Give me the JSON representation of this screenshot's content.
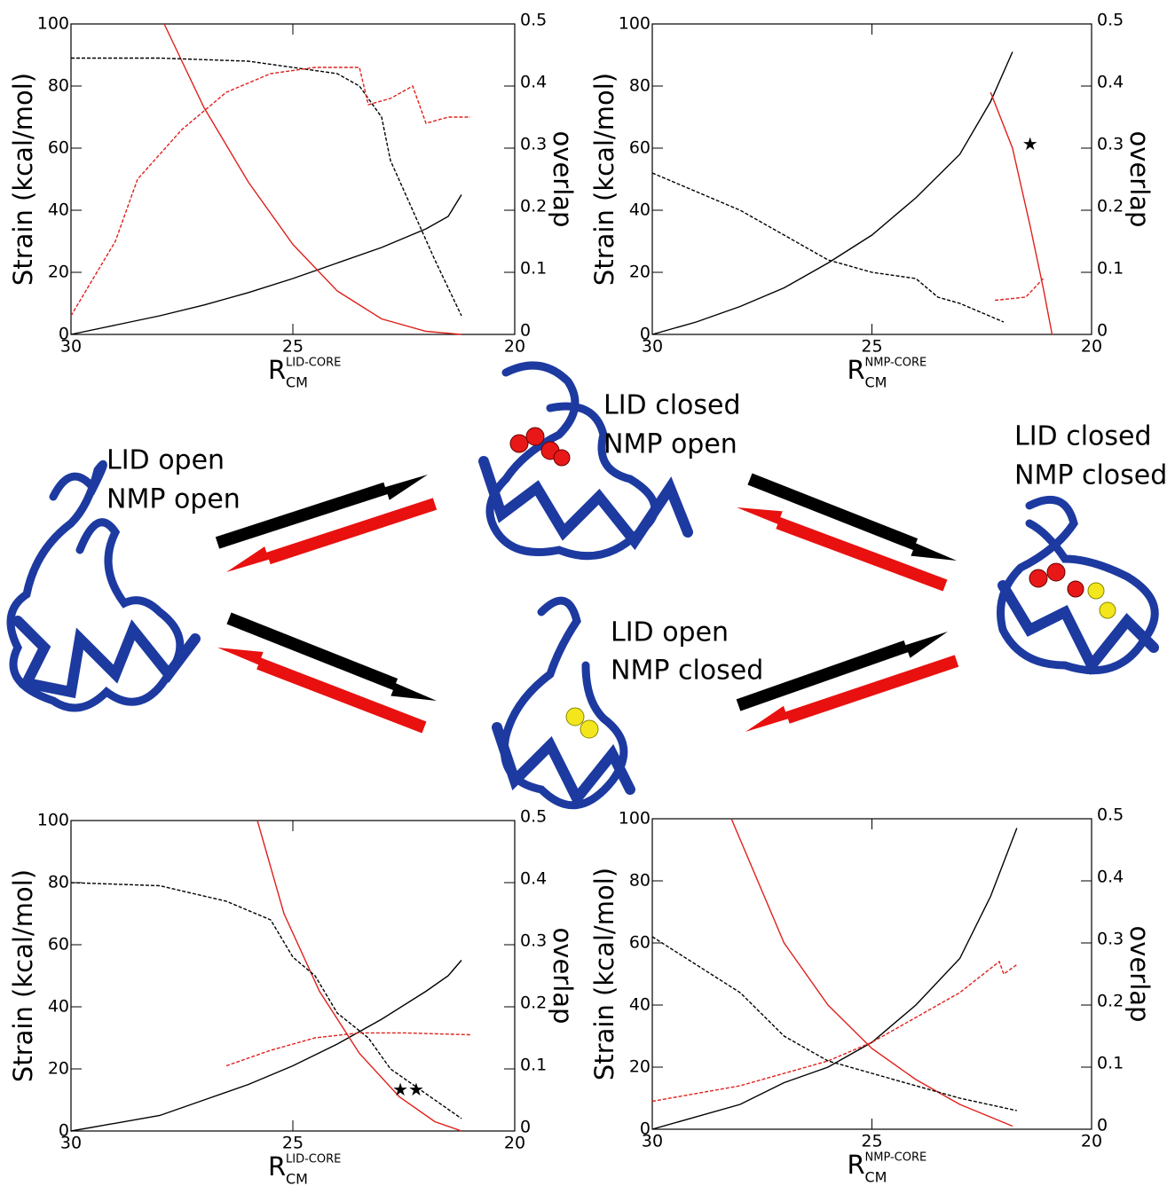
{
  "chart_data": [
    {
      "type": "line",
      "y_label": "Strain (kcal/mol)",
      "y2_label": "overlap",
      "x_label": "R",
      "x_label_sub": "CM",
      "x_label_sup": "LID-CORE",
      "xlim": [
        30,
        20
      ],
      "xticks": [
        30,
        25,
        20
      ],
      "ylim": [
        0,
        100
      ],
      "yticks": [
        0,
        20,
        40,
        60,
        80,
        100
      ],
      "y2lim": [
        0,
        0.5
      ],
      "y2ticks": [
        0,
        0.1,
        0.2,
        0.3,
        0.4,
        0.5
      ],
      "series": [
        {
          "color": "#000000",
          "dash": false,
          "x": [
            30,
            29,
            28,
            27,
            26,
            25,
            24,
            23,
            22,
            21.5,
            21.2
          ],
          "values": [
            0,
            3,
            6,
            9.5,
            13.5,
            18,
            23,
            28,
            34,
            38,
            45
          ]
        },
        {
          "color": "#e0201b",
          "dash": false,
          "x": [
            27.9,
            27,
            26,
            25,
            24,
            23,
            22,
            21.2
          ],
          "values": [
            100,
            73,
            49,
            29,
            14,
            5,
            1,
            0
          ]
        },
        {
          "color": "#000000",
          "dash": true,
          "axis": "y2",
          "x": [
            30,
            28,
            26,
            25,
            24,
            23.5,
            23,
            22.8,
            22.3,
            21.8,
            21.2
          ],
          "values": [
            0.445,
            0.445,
            0.44,
            0.43,
            0.42,
            0.4,
            0.35,
            0.28,
            0.2,
            0.12,
            0.03
          ]
        },
        {
          "color": "#e0201b",
          "dash": true,
          "axis": "y2",
          "x": [
            30,
            29,
            28.5,
            27.5,
            26.5,
            25.5,
            24.5,
            23.5,
            23.3,
            22.8,
            22.3,
            22,
            21.5,
            21
          ],
          "values": [
            0.03,
            0.15,
            0.25,
            0.33,
            0.39,
            0.42,
            0.43,
            0.43,
            0.37,
            0.38,
            0.4,
            0.34,
            0.35,
            0.35
          ]
        }
      ]
    },
    {
      "type": "line",
      "y_label": "Strain (kcal/mol)",
      "y2_label": "overlap",
      "x_label": "R",
      "x_label_sub": "CM",
      "x_label_sup": "NMP-CORE",
      "xlim": [
        30,
        20
      ],
      "xticks": [
        30,
        25,
        20
      ],
      "ylim": [
        0,
        100
      ],
      "yticks": [
        0,
        20,
        40,
        60,
        80,
        100
      ],
      "y2lim": [
        0,
        0.5
      ],
      "y2ticks": [
        0,
        0.1,
        0.2,
        0.3,
        0.4,
        0.5
      ],
      "annotations": [
        {
          "text": "★",
          "x": 21.4,
          "y": 61
        }
      ],
      "series": [
        {
          "color": "#000000",
          "dash": false,
          "x": [
            30,
            29,
            28,
            27,
            26,
            25,
            24,
            23,
            22.3,
            21.8
          ],
          "values": [
            0,
            4,
            9,
            15,
            23,
            32,
            44,
            58,
            75,
            91
          ]
        },
        {
          "color": "#e0201b",
          "dash": false,
          "x": [
            22.3,
            21.8,
            21.4,
            21.1,
            20.9
          ],
          "values": [
            78,
            60,
            35,
            15,
            0
          ]
        },
        {
          "color": "#000000",
          "dash": true,
          "axis": "y2",
          "x": [
            30,
            29,
            28,
            27,
            26,
            25,
            24,
            23.5,
            23,
            22
          ],
          "values": [
            0.26,
            0.23,
            0.2,
            0.16,
            0.12,
            0.1,
            0.09,
            0.06,
            0.05,
            0.02
          ]
        },
        {
          "color": "#e0201b",
          "dash": true,
          "axis": "y2",
          "x": [
            22.2,
            21.5,
            21.1
          ],
          "values": [
            0.055,
            0.06,
            0.09
          ]
        }
      ]
    },
    {
      "type": "line",
      "y_label": "Strain (kcal/mol)",
      "y2_label": "overlap",
      "x_label": "R",
      "x_label_sub": "CM",
      "x_label_sup": "LID-CORE",
      "xlim": [
        30,
        20
      ],
      "xticks": [
        30,
        25,
        20
      ],
      "ylim": [
        0,
        100
      ],
      "yticks": [
        0,
        20,
        40,
        60,
        80,
        100
      ],
      "y2lim": [
        0,
        0.5
      ],
      "y2ticks": [
        0,
        0.1,
        0.2,
        0.3,
        0.4,
        0.5
      ],
      "annotations": [
        {
          "text": "★★",
          "x": 22.4,
          "y": 13
        }
      ],
      "series": [
        {
          "color": "#000000",
          "dash": false,
          "x": [
            30,
            28,
            27,
            26,
            25,
            24,
            23,
            22,
            21.5,
            21.2
          ],
          "values": [
            0,
            5,
            10,
            15,
            21,
            28,
            36,
            45,
            50,
            55
          ]
        },
        {
          "color": "#e0201b",
          "dash": false,
          "x": [
            25.8,
            25.2,
            24.4,
            23.5,
            22.6,
            21.8,
            21.2
          ],
          "values": [
            100,
            70,
            45,
            25,
            11,
            3,
            0
          ]
        },
        {
          "color": "#000000",
          "dash": true,
          "axis": "y2",
          "x": [
            30,
            28,
            26.5,
            25.5,
            25,
            24.5,
            24,
            23.3,
            22.8,
            22,
            21.2
          ],
          "values": [
            0.4,
            0.395,
            0.37,
            0.34,
            0.28,
            0.25,
            0.19,
            0.15,
            0.1,
            0.06,
            0.02
          ]
        },
        {
          "color": "#e0201b",
          "dash": true,
          "axis": "y2",
          "x": [
            26.5,
            25.5,
            24.5,
            23.5,
            22.5,
            21
          ],
          "values": [
            0.105,
            0.13,
            0.15,
            0.158,
            0.158,
            0.155
          ]
        }
      ]
    },
    {
      "type": "line",
      "y_label": "Strain (kcal/mol)",
      "y2_label": "overlap",
      "x_label": "R",
      "x_label_sub": "CM",
      "x_label_sup": "NMP-CORE",
      "xlim": [
        30,
        20
      ],
      "xticks": [
        30,
        25,
        20
      ],
      "ylim": [
        0,
        100
      ],
      "yticks": [
        0,
        20,
        40,
        60,
        80,
        100
      ],
      "y2lim": [
        0,
        0.5
      ],
      "y2ticks": [
        0,
        0.1,
        0.2,
        0.3,
        0.4,
        0.5
      ],
      "series": [
        {
          "color": "#000000",
          "dash": false,
          "x": [
            30,
            28,
            27,
            26,
            25,
            24,
            23,
            22.3,
            21.7
          ],
          "values": [
            0,
            8,
            15,
            20,
            28,
            40,
            55,
            75,
            97
          ]
        },
        {
          "color": "#e0201b",
          "dash": false,
          "x": [
            28.2,
            27,
            26,
            25,
            24,
            23,
            21.8
          ],
          "values": [
            100,
            60,
            40,
            26,
            16,
            8,
            1
          ]
        },
        {
          "color": "#000000",
          "dash": true,
          "axis": "y2",
          "x": [
            30,
            28,
            27,
            26,
            25,
            24,
            23,
            21.7
          ],
          "values": [
            0.31,
            0.22,
            0.15,
            0.11,
            0.09,
            0.07,
            0.05,
            0.03
          ]
        },
        {
          "color": "#e0201b",
          "dash": true,
          "axis": "y2",
          "x": [
            30,
            28,
            27,
            26,
            25,
            24,
            23,
            22.1,
            22,
            21.7
          ],
          "values": [
            0.045,
            0.07,
            0.09,
            0.11,
            0.14,
            0.18,
            0.22,
            0.27,
            0.25,
            0.265
          ]
        }
      ]
    }
  ],
  "diagram": {
    "states": [
      {
        "lines": [
          "LID open",
          "NMP open"
        ]
      },
      {
        "lines": [
          "LID closed",
          "NMP open"
        ]
      },
      {
        "lines": [
          "LID closed",
          "NMP closed"
        ]
      },
      {
        "lines": [
          "LID open",
          "NMP closed"
        ]
      }
    ]
  }
}
